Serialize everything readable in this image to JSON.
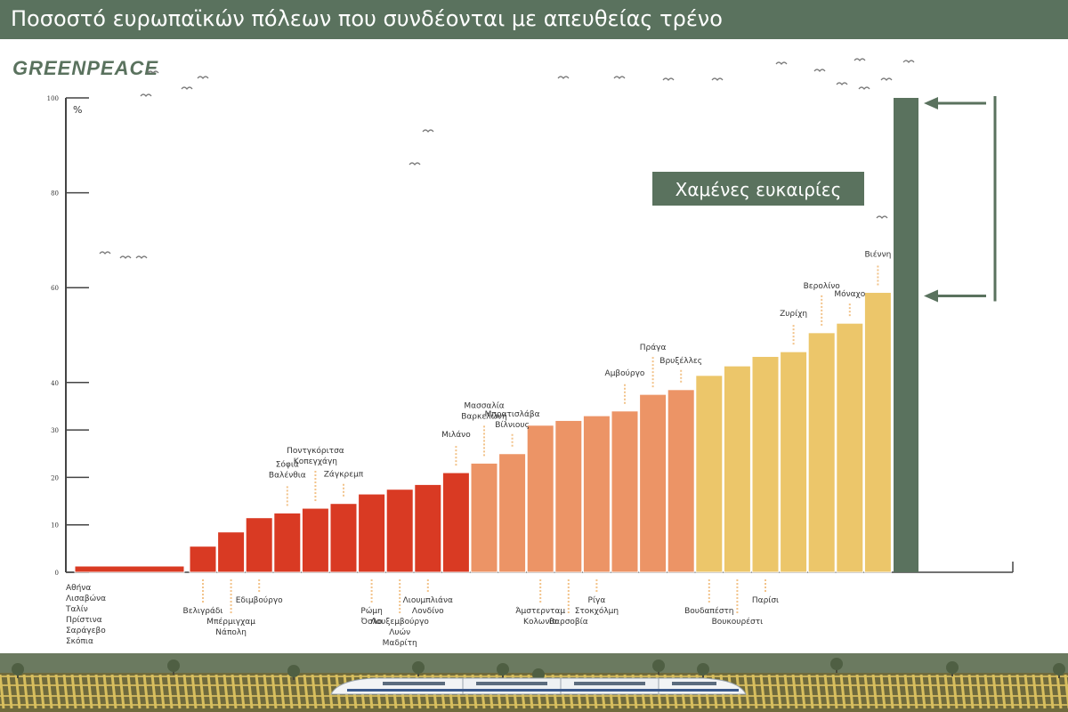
{
  "header": {
    "title": "Ποσοστό ευρωπαϊκών πόλεων που συνδέονται με απευθείας τρένο"
  },
  "logo": {
    "text": "GREENPEACE"
  },
  "colors": {
    "header_bg": "#5a725e",
    "red": "#d93a23",
    "salmon": "#ec9466",
    "yellow": "#ecc66a",
    "green": "#5a725e",
    "axis": "#444444",
    "dash": "#f2c38a"
  },
  "chart_data": {
    "type": "bar",
    "ylabel": "%",
    "ylim": [
      0,
      100
    ],
    "yticks": [
      0,
      10,
      20,
      30,
      40,
      60,
      80,
      100
    ],
    "bars": [
      {
        "value": 1,
        "color": "red",
        "wide": true,
        "labels": [
          "Αθήνα",
          "Λισαβώνα",
          "Ταλίν",
          "Πρίστινα",
          "Σαράγεβο",
          "Σκόπια"
        ],
        "label_pos": "below"
      },
      {
        "value": 5.5,
        "color": "red",
        "labels": [
          "Βελιγράδι"
        ],
        "label_pos": "below"
      },
      {
        "value": 8.5,
        "color": "red",
        "labels": [
          "Μπέρμιγχαμ",
          "Νάπολη"
        ],
        "label_pos": "below"
      },
      {
        "value": 11.5,
        "color": "red",
        "labels": [
          "Εδιμβούργο"
        ],
        "label_pos": "below"
      },
      {
        "value": 12.5,
        "color": "red",
        "labels": [
          "Σόφια",
          "Βαλένθια"
        ],
        "label_pos": "above"
      },
      {
        "value": 13.5,
        "color": "red",
        "labels": [
          "Ποντγκόριτσα",
          "Κοπεγχάγη"
        ],
        "label_pos": "above"
      },
      {
        "value": 14.5,
        "color": "red",
        "labels": [
          "Ζάγκρεμπ"
        ],
        "label_pos": "above"
      },
      {
        "value": 16.5,
        "color": "red",
        "labels": [
          "Ρώμη",
          "Όσλο"
        ],
        "label_pos": "below"
      },
      {
        "value": 17.5,
        "color": "red",
        "labels": [
          "Λουξεμβούργο",
          "Λυών",
          "Μαδρίτη"
        ],
        "label_pos": "below"
      },
      {
        "value": 18.5,
        "color": "red",
        "labels": [
          "Λιουμπλιάνα",
          "Λονδίνο"
        ],
        "label_pos": "below"
      },
      {
        "value": 21,
        "color": "red",
        "labels": [
          "Μιλάνο"
        ],
        "label_pos": "above"
      },
      {
        "value": 23,
        "color": "salmon",
        "labels": [
          "Μασσαλία",
          "Βαρκελώνη"
        ],
        "label_pos": "above"
      },
      {
        "value": 25,
        "color": "salmon",
        "labels": [
          "Μπρατισλάβα",
          "Βίλνιους"
        ],
        "label_pos": "above"
      },
      {
        "value": 31,
        "color": "salmon",
        "labels": [
          "Άμστερνταμ",
          "Κολωνία"
        ],
        "label_pos": "below"
      },
      {
        "value": 32,
        "color": "salmon",
        "labels": [
          "Βαρσοβία"
        ],
        "label_pos": "below"
      },
      {
        "value": 33,
        "color": "salmon",
        "labels": [
          "Ρίγα",
          "Στοκχόλμη"
        ],
        "label_pos": "below"
      },
      {
        "value": 34,
        "color": "salmon",
        "labels": [
          "Αμβούργο"
        ],
        "label_pos": "above"
      },
      {
        "value": 37.5,
        "color": "salmon",
        "labels": [
          "Πράγα"
        ],
        "label_pos": "above"
      },
      {
        "value": 38.5,
        "color": "salmon",
        "labels": [
          "Βρυξέλλες"
        ],
        "label_pos": "above"
      },
      {
        "value": 41.5,
        "color": "yellow",
        "labels": [
          "Βουδαπέστη"
        ],
        "label_pos": "below"
      },
      {
        "value": 43.5,
        "color": "yellow",
        "labels": [
          "Βουκουρέστι"
        ],
        "label_pos": "below"
      },
      {
        "value": 45.5,
        "color": "yellow",
        "labels": [
          "Παρίσι"
        ],
        "label_pos": "below"
      },
      {
        "value": 46.5,
        "color": "yellow",
        "labels": [
          "Ζυρίχη"
        ],
        "label_pos": "above"
      },
      {
        "value": 50.5,
        "color": "yellow",
        "labels": [
          "Βερολίνο"
        ],
        "label_pos": "above"
      },
      {
        "value": 52.5,
        "color": "yellow",
        "labels": [
          "Μόναχο"
        ],
        "label_pos": "above"
      },
      {
        "value": 59,
        "color": "yellow",
        "labels": [
          "Βιέννη"
        ],
        "label_pos": "above"
      },
      {
        "value": 100,
        "color": "green",
        "labels": [],
        "label_pos": "none"
      }
    ],
    "annotation": {
      "text": "Χαμένες ευκαιρίες",
      "from_value": 59,
      "to_value": 100
    }
  }
}
